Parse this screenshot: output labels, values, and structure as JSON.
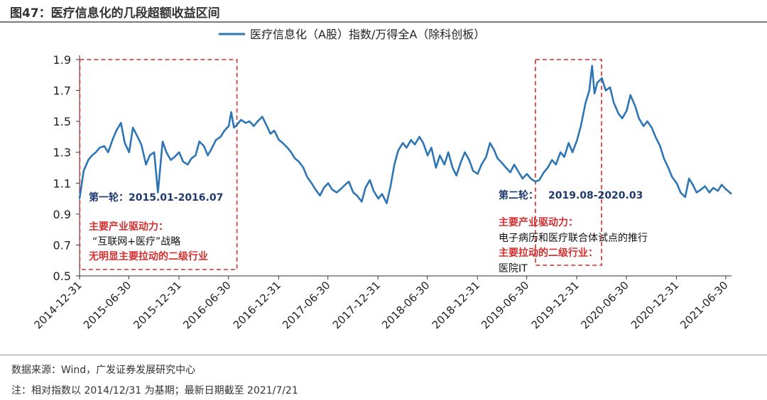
{
  "figure": {
    "title": "图47：医疗信息化的几段超额收益区间",
    "source": "数据来源：Wind，广发证券发展研究中心",
    "note": "注：相对指数以 2014/12/31 为基期；最新日期截至 2021/7/21"
  },
  "chart_data": {
    "type": "line",
    "title": "",
    "legend_position": "top",
    "series": [
      {
        "name": "医疗信息化（A股）指数/万得全A（除科创板）",
        "color": "#2e75b6",
        "points": [
          [
            "2014-12-31",
            1.0
          ],
          [
            "2015-01-15",
            1.18
          ],
          [
            "2015-02-01",
            1.25
          ],
          [
            "2015-02-15",
            1.28
          ],
          [
            "2015-03-01",
            1.3
          ],
          [
            "2015-03-15",
            1.33
          ],
          [
            "2015-04-01",
            1.34
          ],
          [
            "2015-04-15",
            1.3
          ],
          [
            "2015-05-01",
            1.38
          ],
          [
            "2015-05-15",
            1.44
          ],
          [
            "2015-06-01",
            1.49
          ],
          [
            "2015-06-15",
            1.36
          ],
          [
            "2015-07-01",
            1.3
          ],
          [
            "2015-07-15",
            1.46
          ],
          [
            "2015-08-01",
            1.4
          ],
          [
            "2015-08-15",
            1.35
          ],
          [
            "2015-09-01",
            1.22
          ],
          [
            "2015-09-15",
            1.28
          ],
          [
            "2015-10-01",
            1.3
          ],
          [
            "2015-10-15",
            1.04
          ],
          [
            "2015-11-01",
            1.37
          ],
          [
            "2015-11-15",
            1.3
          ],
          [
            "2015-12-01",
            1.25
          ],
          [
            "2015-12-15",
            1.27
          ],
          [
            "2016-01-01",
            1.3
          ],
          [
            "2016-01-15",
            1.24
          ],
          [
            "2016-02-01",
            1.22
          ],
          [
            "2016-02-15",
            1.26
          ],
          [
            "2016-03-01",
            1.28
          ],
          [
            "2016-03-15",
            1.37
          ],
          [
            "2016-04-01",
            1.34
          ],
          [
            "2016-04-15",
            1.28
          ],
          [
            "2016-05-01",
            1.33
          ],
          [
            "2016-05-15",
            1.38
          ],
          [
            "2016-06-01",
            1.4
          ],
          [
            "2016-06-15",
            1.44
          ],
          [
            "2016-07-01",
            1.47
          ],
          [
            "2016-07-10",
            1.56
          ],
          [
            "2016-07-20",
            1.46
          ],
          [
            "2016-08-01",
            1.48
          ],
          [
            "2016-08-15",
            1.51
          ],
          [
            "2016-09-01",
            1.49
          ],
          [
            "2016-09-15",
            1.5
          ],
          [
            "2016-10-01",
            1.47
          ],
          [
            "2016-10-15",
            1.5
          ],
          [
            "2016-11-01",
            1.53
          ],
          [
            "2016-11-15",
            1.48
          ],
          [
            "2016-12-01",
            1.42
          ],
          [
            "2016-12-15",
            1.44
          ],
          [
            "2017-01-01",
            1.38
          ],
          [
            "2017-01-15",
            1.36
          ],
          [
            "2017-02-01",
            1.33
          ],
          [
            "2017-02-15",
            1.3
          ],
          [
            "2017-03-01",
            1.26
          ],
          [
            "2017-03-15",
            1.24
          ],
          [
            "2017-04-01",
            1.2
          ],
          [
            "2017-04-15",
            1.14
          ],
          [
            "2017-05-01",
            1.1
          ],
          [
            "2017-05-15",
            1.06
          ],
          [
            "2017-06-01",
            1.02
          ],
          [
            "2017-06-15",
            1.07
          ],
          [
            "2017-07-01",
            1.1
          ],
          [
            "2017-07-15",
            1.06
          ],
          [
            "2017-08-01",
            1.04
          ],
          [
            "2017-08-15",
            1.06
          ],
          [
            "2017-09-01",
            1.09
          ],
          [
            "2017-09-15",
            1.11
          ],
          [
            "2017-10-01",
            1.04
          ],
          [
            "2017-10-15",
            1.02
          ],
          [
            "2017-11-01",
            0.98
          ],
          [
            "2017-11-15",
            1.07
          ],
          [
            "2017-12-01",
            1.12
          ],
          [
            "2017-12-15",
            1.05
          ],
          [
            "2018-01-01",
            1.0
          ],
          [
            "2018-01-15",
            1.03
          ],
          [
            "2018-02-01",
            0.97
          ],
          [
            "2018-02-15",
            1.08
          ],
          [
            "2018-03-01",
            1.22
          ],
          [
            "2018-03-15",
            1.31
          ],
          [
            "2018-04-01",
            1.36
          ],
          [
            "2018-04-15",
            1.33
          ],
          [
            "2018-05-01",
            1.38
          ],
          [
            "2018-05-15",
            1.35
          ],
          [
            "2018-06-01",
            1.4
          ],
          [
            "2018-06-15",
            1.36
          ],
          [
            "2018-07-01",
            1.28
          ],
          [
            "2018-07-15",
            1.33
          ],
          [
            "2018-08-01",
            1.2
          ],
          [
            "2018-08-15",
            1.28
          ],
          [
            "2018-09-01",
            1.22
          ],
          [
            "2018-09-15",
            1.3
          ],
          [
            "2018-10-01",
            1.2
          ],
          [
            "2018-10-15",
            1.15
          ],
          [
            "2018-11-01",
            1.24
          ],
          [
            "2018-11-15",
            1.3
          ],
          [
            "2018-12-01",
            1.25
          ],
          [
            "2018-12-15",
            1.18
          ],
          [
            "2019-01-01",
            1.16
          ],
          [
            "2019-01-15",
            1.22
          ],
          [
            "2019-02-01",
            1.27
          ],
          [
            "2019-02-15",
            1.36
          ],
          [
            "2019-03-01",
            1.32
          ],
          [
            "2019-03-15",
            1.26
          ],
          [
            "2019-04-01",
            1.23
          ],
          [
            "2019-04-15",
            1.2
          ],
          [
            "2019-05-01",
            1.17
          ],
          [
            "2019-05-15",
            1.22
          ],
          [
            "2019-06-01",
            1.17
          ],
          [
            "2019-06-15",
            1.13
          ],
          [
            "2019-07-01",
            1.16
          ],
          [
            "2019-07-15",
            1.13
          ],
          [
            "2019-08-01",
            1.11
          ],
          [
            "2019-08-15",
            1.12
          ],
          [
            "2019-09-01",
            1.17
          ],
          [
            "2019-09-15",
            1.2
          ],
          [
            "2019-10-01",
            1.25
          ],
          [
            "2019-10-15",
            1.22
          ],
          [
            "2019-11-01",
            1.3
          ],
          [
            "2019-11-15",
            1.27
          ],
          [
            "2019-12-01",
            1.36
          ],
          [
            "2019-12-15",
            1.3
          ],
          [
            "2020-01-01",
            1.38
          ],
          [
            "2020-01-15",
            1.47
          ],
          [
            "2020-02-01",
            1.62
          ],
          [
            "2020-02-15",
            1.7
          ],
          [
            "2020-02-25",
            1.86
          ],
          [
            "2020-03-05",
            1.68
          ],
          [
            "2020-03-15",
            1.75
          ],
          [
            "2020-04-01",
            1.78
          ],
          [
            "2020-04-15",
            1.7
          ],
          [
            "2020-05-01",
            1.72
          ],
          [
            "2020-05-15",
            1.62
          ],
          [
            "2020-06-01",
            1.55
          ],
          [
            "2020-06-15",
            1.52
          ],
          [
            "2020-07-01",
            1.57
          ],
          [
            "2020-07-15",
            1.67
          ],
          [
            "2020-08-01",
            1.6
          ],
          [
            "2020-08-15",
            1.52
          ],
          [
            "2020-09-01",
            1.47
          ],
          [
            "2020-09-15",
            1.5
          ],
          [
            "2020-10-01",
            1.46
          ],
          [
            "2020-10-15",
            1.4
          ],
          [
            "2020-11-01",
            1.34
          ],
          [
            "2020-11-15",
            1.26
          ],
          [
            "2020-12-01",
            1.2
          ],
          [
            "2020-12-15",
            1.14
          ],
          [
            "2021-01-01",
            1.1
          ],
          [
            "2021-01-15",
            1.04
          ],
          [
            "2021-02-01",
            1.01
          ],
          [
            "2021-02-15",
            1.13
          ],
          [
            "2021-03-01",
            1.09
          ],
          [
            "2021-03-15",
            1.04
          ],
          [
            "2021-04-01",
            1.06
          ],
          [
            "2021-04-15",
            1.08
          ],
          [
            "2021-05-01",
            1.04
          ],
          [
            "2021-05-15",
            1.07
          ],
          [
            "2021-06-01",
            1.05
          ],
          [
            "2021-06-15",
            1.09
          ],
          [
            "2021-07-01",
            1.06
          ],
          [
            "2021-07-21",
            1.03
          ]
        ]
      }
    ],
    "y_axis": {
      "min": 0.5,
      "max": 1.9,
      "ticks": [
        0.5,
        0.7,
        0.9,
        1.1,
        1.3,
        1.5,
        1.7,
        1.9
      ],
      "decimals": 1
    },
    "x_axis": {
      "start": "2014-12-31",
      "end": "2021-07-21",
      "tick_labels": [
        "2014-12-31",
        "2015-06-30",
        "2015-12-31",
        "2016-06-30",
        "2016-12-31",
        "2017-06-30",
        "2017-12-31",
        "2018-06-30",
        "2018-12-31",
        "2019-06-30",
        "2019-12-31",
        "2020-06-30",
        "2020-12-31",
        "2021-06-30"
      ]
    },
    "highlight_windows": [
      {
        "id": "window-1",
        "from": "2015-01-01",
        "to": "2016-07-31",
        "color": "#d32f2f",
        "label": "第一轮：2015.01-2016.07",
        "driver_title": "主要产业驱动力：",
        "driver_text": "“互联网+医疗”战略",
        "sector_text": "无明显主要拉动的二级行业"
      },
      {
        "id": "window-2",
        "from": "2019-08-01",
        "to": "2020-03-31",
        "color": "#d32f2f",
        "label_prefix": "第二轮：",
        "label_range": "2019.08-2020.03",
        "driver_title": "主要产业驱动力：",
        "driver_text": "电子病历和医疗联合体试点的推行",
        "sector_title": "主要拉动的二级行业：",
        "sector_text": "医院IT"
      }
    ]
  }
}
